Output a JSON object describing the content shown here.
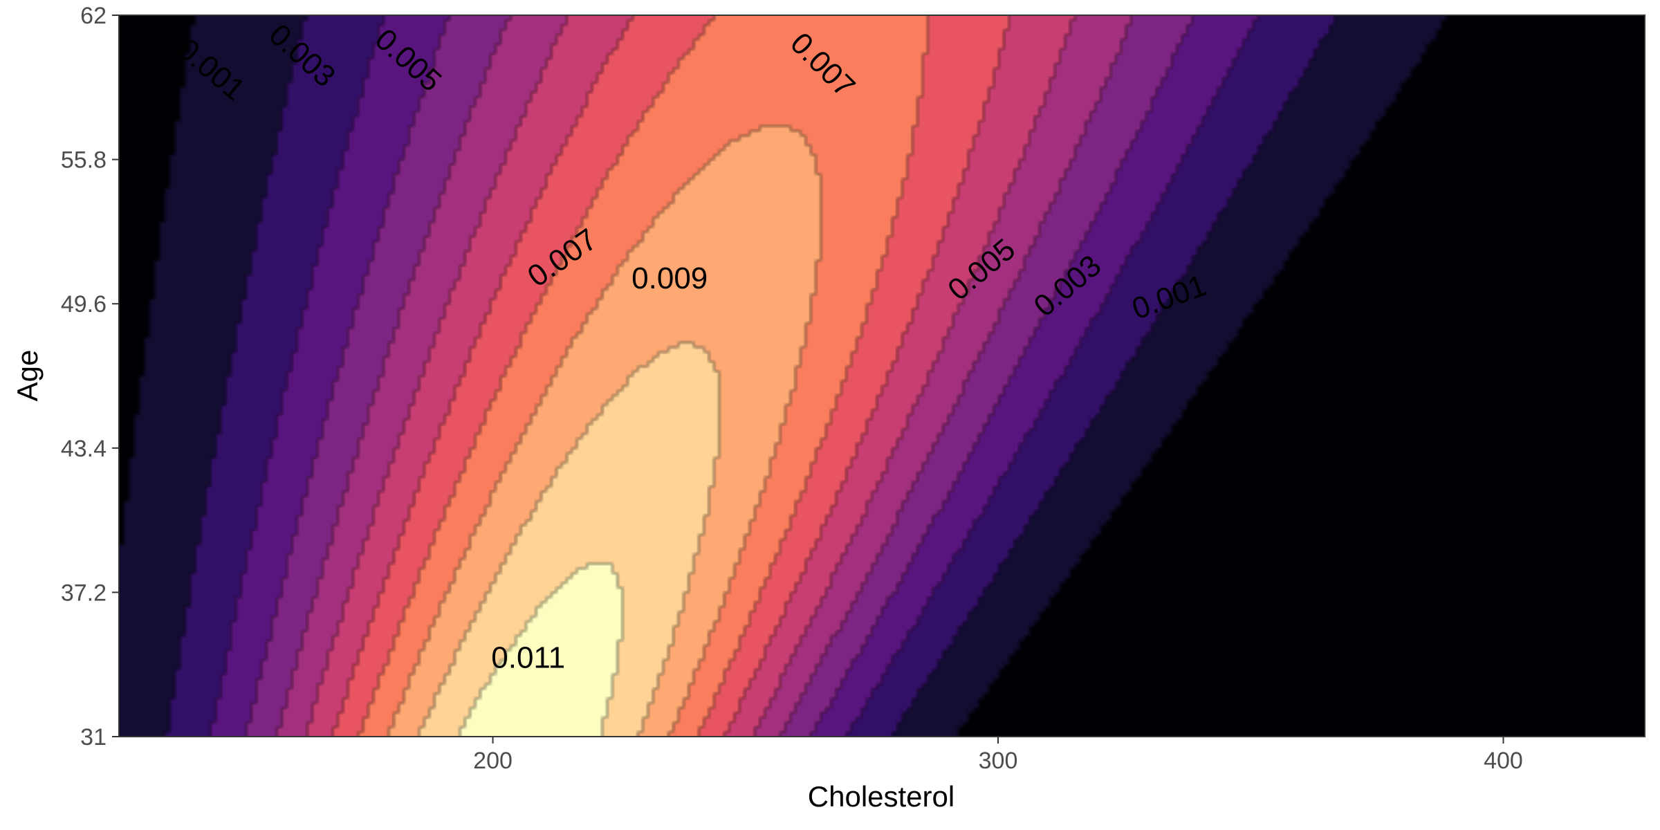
{
  "chart_data": {
    "type": "heatmap",
    "subtype": "filled-density-contour",
    "title": "",
    "xlabel": "Cholesterol",
    "ylabel": "Age",
    "xlim": [
      126,
      428
    ],
    "ylim": [
      31,
      62
    ],
    "x_ticks": [
      {
        "value": 200,
        "label": "200"
      },
      {
        "value": 300,
        "label": "300"
      },
      {
        "value": 400,
        "label": "400"
      }
    ],
    "y_ticks": [
      {
        "value": 31,
        "label": "31"
      },
      {
        "value": 37.2,
        "label": "37.2"
      },
      {
        "value": 43.4,
        "label": "43.4"
      },
      {
        "value": 49.6,
        "label": "49.6"
      },
      {
        "value": 55.8,
        "label": "55.8"
      },
      {
        "value": 62,
        "label": "62"
      }
    ],
    "density_peak": {
      "x": 207,
      "y": 31,
      "value": 0.0118
    },
    "contour_levels": [
      0,
      0.001,
      0.002,
      0.003,
      0.004,
      0.005,
      0.006,
      0.007,
      0.008,
      0.009,
      0.01,
      0.011
    ],
    "palette": [
      "#000004",
      "#120d31",
      "#331067",
      "#59157e",
      "#7e2482",
      "#a3307e",
      "#c83e73",
      "#e95462",
      "#fa7d5e",
      "#fea973",
      "#fed395",
      "#fcfdbf"
    ],
    "grid": false,
    "legend": "none",
    "contour_labels": [
      {
        "text": "0.001",
        "x": 144,
        "y": 59.6,
        "angle": 40
      },
      {
        "text": "0.003",
        "x": 162,
        "y": 60.2,
        "angle": 42
      },
      {
        "text": "0.005",
        "x": 183,
        "y": 60.0,
        "angle": 42
      },
      {
        "text": "0.007",
        "x": 265,
        "y": 59.8,
        "angle": 45
      },
      {
        "text": "0.007",
        "x": 214,
        "y": 51.5,
        "angle": -35
      },
      {
        "text": "0.009",
        "x": 235,
        "y": 50.6,
        "angle": 0
      },
      {
        "text": "0.005",
        "x": 297,
        "y": 51.0,
        "angle": -40
      },
      {
        "text": "0.003",
        "x": 314,
        "y": 50.3,
        "angle": -40
      },
      {
        "text": "0.001",
        "x": 334,
        "y": 49.8,
        "angle": -20
      },
      {
        "text": "0.011",
        "x": 207,
        "y": 34.3,
        "angle": 0
      }
    ]
  }
}
